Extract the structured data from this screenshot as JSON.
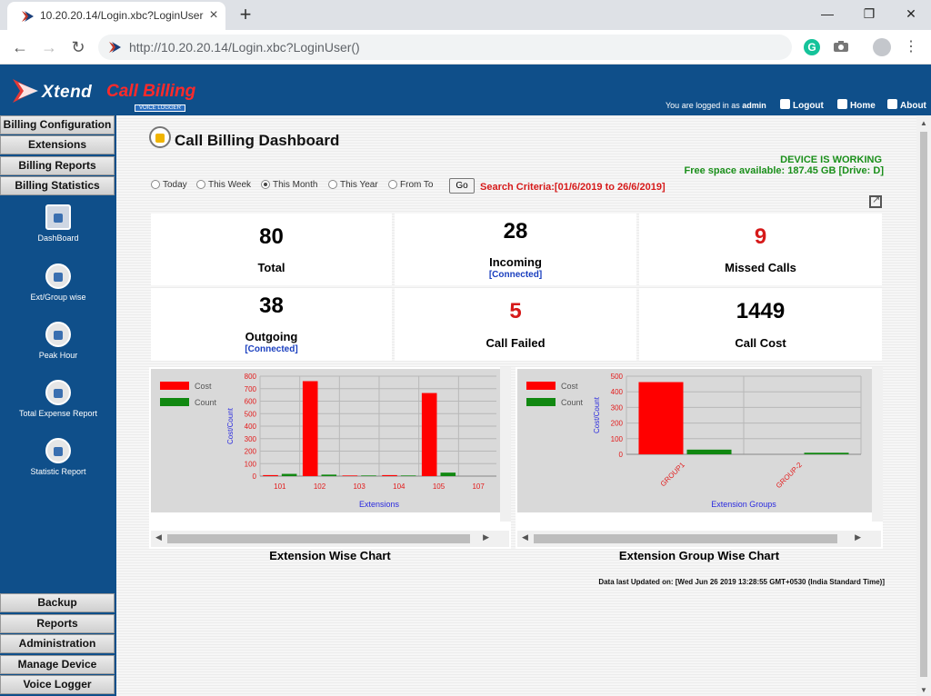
{
  "browser": {
    "tab_title": "10.20.20.14/Login.xbc?LoginUser()",
    "url": "http://10.20.20.14/Login.xbc?LoginUser()"
  },
  "header": {
    "logo_xtend": "Xtend",
    "logo_call_billing": "Call Billing",
    "logo_sub": "VOICE LOGGER",
    "logged_in_prefix": "You are logged in as",
    "username": "admin",
    "logout": "Logout",
    "home": "Home",
    "about": "About"
  },
  "sidebar": {
    "top_menus": [
      "Billing Configuration",
      "Extensions",
      "Billing Reports",
      "Billing Statistics"
    ],
    "items": [
      {
        "label": "DashBoard",
        "icon": "dashboard-icon"
      },
      {
        "label": "Ext/Group wise",
        "icon": "ext-group-icon"
      },
      {
        "label": "Peak Hour",
        "icon": "peak-hour-icon"
      },
      {
        "label": "Total Expense Report",
        "icon": "expense-report-icon"
      },
      {
        "label": "Statistic Report",
        "icon": "statistic-report-icon"
      }
    ],
    "bottom_menus": [
      "Backup",
      "Reports",
      "Administration",
      "Manage Device",
      "Voice Logger"
    ]
  },
  "dashboard": {
    "title": "Call Billing Dashboard",
    "device_status": "DEVICE IS WORKING",
    "free_space": "Free space available: 187.45 GB [Drive: D]",
    "filters": [
      "Today",
      "This Week",
      "This Month",
      "This Year",
      "From To"
    ],
    "selected_filter": "This Month",
    "go_label": "Go",
    "search_criteria": "Search Criteria:[01/6/2019 to 26/6/2019]",
    "stats": {
      "total": {
        "value": "80",
        "label": "Total"
      },
      "incoming": {
        "value": "28",
        "label": "Incoming",
        "sub": "[Connected]"
      },
      "missed": {
        "value": "9",
        "label": "Missed Calls"
      },
      "outgoing": {
        "value": "38",
        "label": "Outgoing",
        "sub": "[Connected]"
      },
      "failed": {
        "value": "5",
        "label": "Call Failed"
      },
      "cost": {
        "value": "1449",
        "label": "Call Cost"
      }
    },
    "chart1_caption": "Extension Wise Chart",
    "chart2_caption": "Extension Group Wise Chart",
    "updated": "Data last Updated on: [Wed Jun 26 2019 13:28:55 GMT+0530 (India Standard Time)]"
  },
  "colors": {
    "cost": "#ff0000",
    "count": "#118811",
    "accent": "#0f4f8a"
  },
  "chart_data": [
    {
      "type": "bar",
      "xlabel": "Extensions",
      "ylabel": "Cost/Count",
      "ylim": [
        0,
        800
      ],
      "yticks": [
        0,
        100,
        200,
        300,
        400,
        500,
        600,
        700,
        800
      ],
      "categories": [
        "101",
        "102",
        "103",
        "104",
        "105",
        "107"
      ],
      "series": [
        {
          "name": "Cost",
          "values": [
            8,
            760,
            5,
            8,
            665,
            0
          ]
        },
        {
          "name": "Count",
          "values": [
            18,
            12,
            5,
            5,
            28,
            0
          ]
        }
      ],
      "grid": true,
      "legend": "top-left"
    },
    {
      "type": "bar",
      "xlabel": "Extension Groups",
      "ylabel": "Cost/Count",
      "ylim": [
        0,
        500
      ],
      "yticks": [
        0,
        100,
        200,
        300,
        400,
        500
      ],
      "categories": [
        "GROUP1",
        "GROUP-2"
      ],
      "series": [
        {
          "name": "Cost",
          "values": [
            462,
            0
          ]
        },
        {
          "name": "Count",
          "values": [
            30,
            10
          ]
        }
      ],
      "grid": true,
      "legend": "top-left"
    }
  ]
}
